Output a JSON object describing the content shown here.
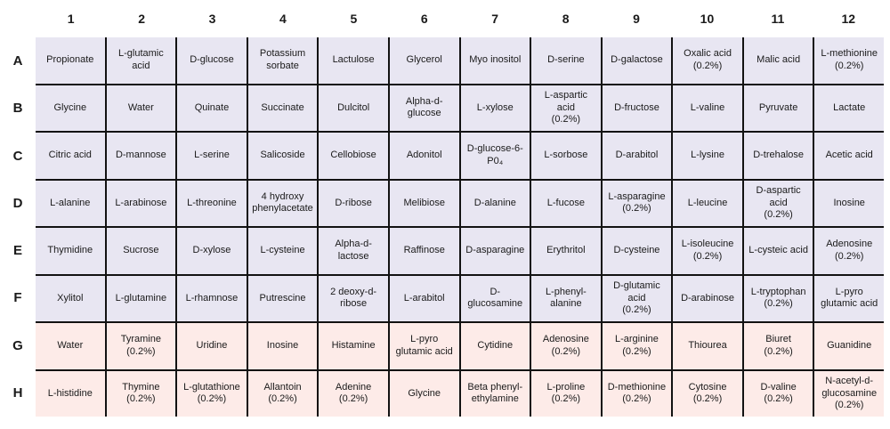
{
  "plate": {
    "col_headers": [
      "1",
      "2",
      "3",
      "4",
      "5",
      "6",
      "7",
      "8",
      "9",
      "10",
      "11",
      "12"
    ],
    "rows": [
      {
        "label": "A",
        "shade": "lavender",
        "cells": [
          "Propionate",
          "L-glutamic\nacid",
          "D-glucose",
          "Potassium\nsorbate",
          "Lactulose",
          "Glycerol",
          "Myo inositol",
          "D-serine",
          "D-galactose",
          "Oxalic acid\n(0.2%)",
          "Malic acid",
          "L-methionine\n(0.2%)"
        ]
      },
      {
        "label": "B",
        "shade": "lavender",
        "cells": [
          "Glycine",
          "Water",
          "Quinate",
          "Succinate",
          "Dulcitol",
          "Alpha-d-\nglucose",
          "L-xylose",
          "L-aspartic\nacid\n(0.2%)",
          "D-fructose",
          "L-valine",
          "Pyruvate",
          "Lactate"
        ]
      },
      {
        "label": "C",
        "shade": "lavender",
        "cells": [
          "Citric acid",
          "D-mannose",
          "L-serine",
          "Salicoside",
          "Cellobiose",
          "Adonitol",
          "D-glucose-6-\nP0₄",
          "L-sorbose",
          "D-arabitol",
          "L-lysine",
          "D-trehalose",
          "Acetic acid"
        ]
      },
      {
        "label": "D",
        "shade": "lavender",
        "cells": [
          "L-alanine",
          "L-arabinose",
          "L-threonine",
          "4 hydroxy\nphenylacetate",
          "D-ribose",
          "Melibiose",
          "D-alanine",
          "L-fucose",
          "L-asparagine\n(0.2%)",
          "L-leucine",
          "D-aspartic\nacid\n(0.2%)",
          "Inosine"
        ]
      },
      {
        "label": "E",
        "shade": "lavender",
        "cells": [
          "Thymidine",
          "Sucrose",
          "D-xylose",
          "L-cysteine",
          "Alpha-d-\nlactose",
          "Raffinose",
          "D-asparagine",
          "Erythritol",
          "D-cysteine",
          "L-isoleucine\n(0.2%)",
          "L-cysteic acid",
          "Adenosine\n(0.2%)"
        ]
      },
      {
        "label": "F",
        "shade": "lavender",
        "cells": [
          "Xylitol",
          "L-glutamine",
          "L-rhamnose",
          "Putrescine",
          "2 deoxy-d-\nribose",
          "L-arabitol",
          "D-\nglucosamine",
          "L-phenyl-\nalanine",
          "D-glutamic\nacid\n(0.2%)",
          "D-arabinose",
          "L-tryptophan\n(0.2%)",
          "L-pyro\nglutamic acid"
        ]
      },
      {
        "label": "G",
        "shade": "pink",
        "cells": [
          "Water",
          "Tyramine\n(0.2%)",
          "Uridine",
          "Inosine",
          "Histamine",
          "L-pyro\nglutamic acid",
          "Cytidine",
          "Adenosine\n(0.2%)",
          "L-arginine\n(0.2%)",
          "Thiourea",
          "Biuret\n(0.2%)",
          "Guanidine"
        ]
      },
      {
        "label": "H",
        "shade": "pink",
        "cells": [
          "L-histidine",
          "Thymine\n(0.2%)",
          "L-glutathione\n(0.2%)",
          "Allantoin\n(0.2%)",
          "Adenine\n(0.2%)",
          "Glycine",
          "Beta phenyl-\nethylamine",
          "L-proline\n(0.2%)",
          "D-methionine\n(0.2%)",
          "Cytosine\n(0.2%)",
          "D-valine\n(0.2%)",
          "N-acetyl-d-\nglucosamine\n(0.2%)"
        ]
      }
    ]
  },
  "colors": {
    "lavender_bg": "#e8e6f2",
    "pink_bg": "#fdebe8",
    "grid_line": "#121212",
    "text": "#1a1a1a"
  }
}
